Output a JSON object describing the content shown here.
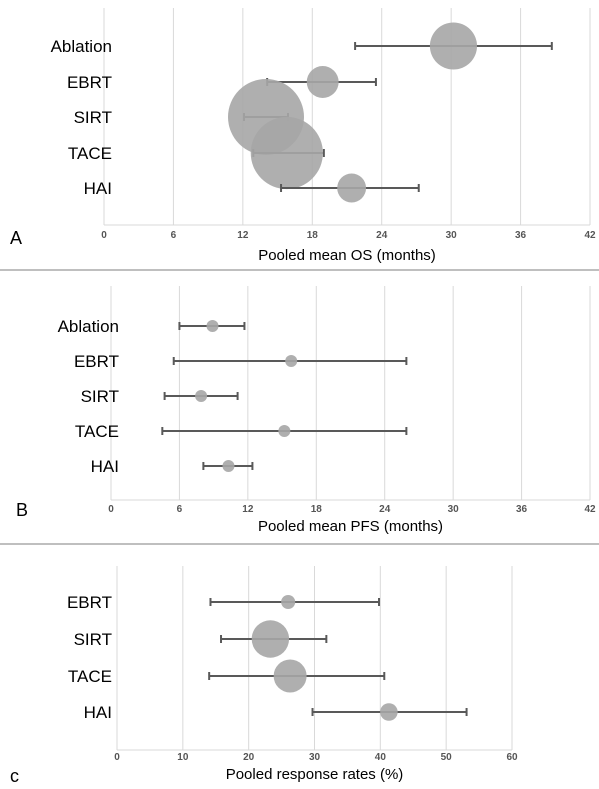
{
  "chart_data": [
    {
      "type": "scatter",
      "panel": "A",
      "xlabel": "Pooled mean OS (months)",
      "xlim": [
        0,
        42
      ],
      "xticks": [
        0,
        6,
        12,
        18,
        24,
        30,
        36,
        42
      ],
      "categories": [
        "Ablation",
        "EBRT",
        "SIRT",
        "TACE",
        "HAI"
      ],
      "points": [
        {
          "category": "Ablation",
          "x": 30.2,
          "ci": [
            21.7,
            38.7
          ],
          "weight": 0.62
        },
        {
          "category": "EBRT",
          "x": 18.9,
          "ci": [
            14.1,
            23.5
          ],
          "weight": 0.42
        },
        {
          "category": "SIRT",
          "x": 14.0,
          "ci": [
            12.1,
            15.9
          ],
          "weight": 1.0
        },
        {
          "category": "TACE",
          "x": 15.8,
          "ci": [
            12.9,
            19.0
          ],
          "weight": 0.95
        },
        {
          "category": "HAI",
          "x": 21.4,
          "ci": [
            15.3,
            27.2
          ],
          "weight": 0.38
        }
      ]
    },
    {
      "type": "scatter",
      "panel": "B",
      "xlabel": "Pooled mean PFS (months)",
      "xlim": [
        0,
        42
      ],
      "xticks": [
        0,
        6,
        12,
        18,
        24,
        30,
        36,
        42
      ],
      "categories": [
        "Ablation",
        "EBRT",
        "SIRT",
        "TACE",
        "HAI"
      ],
      "points": [
        {
          "category": "Ablation",
          "x": 8.9,
          "ci": [
            6.0,
            11.7
          ],
          "weight": 0.45
        },
        {
          "category": "EBRT",
          "x": 15.8,
          "ci": [
            5.5,
            25.9
          ],
          "weight": 0.3
        },
        {
          "category": "SIRT",
          "x": 7.9,
          "ci": [
            4.7,
            11.1
          ],
          "weight": 0.45
        },
        {
          "category": "TACE",
          "x": 15.2,
          "ci": [
            4.5,
            25.9
          ],
          "weight": 0.5
        },
        {
          "category": "HAI",
          "x": 10.3,
          "ci": [
            8.1,
            12.4
          ],
          "weight": 0.33
        }
      ]
    },
    {
      "type": "scatter",
      "panel": "C",
      "xlabel": "Pooled response rates (%)",
      "xlim": [
        0,
        60
      ],
      "xticks": [
        0,
        10,
        20,
        30,
        40,
        50,
        60
      ],
      "categories": [
        "EBRT",
        "SIRT",
        "TACE",
        "HAI"
      ],
      "points": [
        {
          "category": "EBRT",
          "x": 26.0,
          "ci": [
            14.2,
            39.8
          ],
          "weight": 0.32
        },
        {
          "category": "SIRT",
          "x": 23.3,
          "ci": [
            15.8,
            31.8
          ],
          "weight": 0.85
        },
        {
          "category": "TACE",
          "x": 26.3,
          "ci": [
            14.0,
            40.6
          ],
          "weight": 0.75
        },
        {
          "category": "HAI",
          "x": 41.3,
          "ci": [
            29.7,
            53.1
          ],
          "weight": 0.4
        }
      ]
    }
  ],
  "panel_letters": [
    "A",
    "B",
    "c"
  ]
}
